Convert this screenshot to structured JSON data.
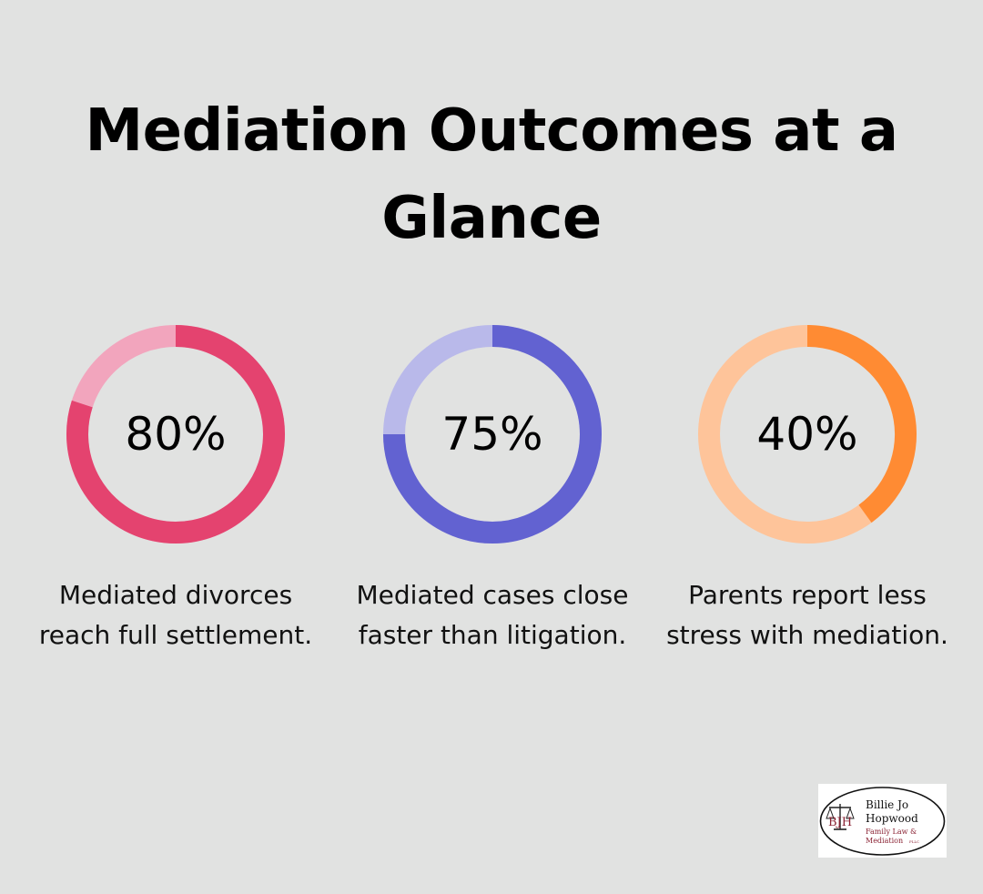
{
  "title": "Mediation Outcomes at a Glance",
  "chart_data": [
    {
      "type": "pie",
      "value": 80,
      "value_label": "80%",
      "caption": "Mediated divorces reach full settlement.",
      "colors": {
        "filled": "#e4436f",
        "track": "#f2a5bd"
      }
    },
    {
      "type": "pie",
      "value": 75,
      "value_label": "75%",
      "caption": "Mediated cases close faster than litigation.",
      "colors": {
        "filled": "#6262d1",
        "track": "#b9b9ea"
      }
    },
    {
      "type": "pie",
      "value": 40,
      "value_label": "40%",
      "caption": "Parents report less stress with mediation.",
      "colors": {
        "filled": "#ff8b33",
        "track": "#fec49a"
      }
    }
  ],
  "logo": {
    "monogram": "BJH",
    "name_line1": "Billie Jo",
    "name_line2": "Hopwood",
    "firm_line1": "Family Law &",
    "firm_line2": "Mediation",
    "suffix": "PLLC",
    "icon": "scales-of-justice-icon"
  }
}
